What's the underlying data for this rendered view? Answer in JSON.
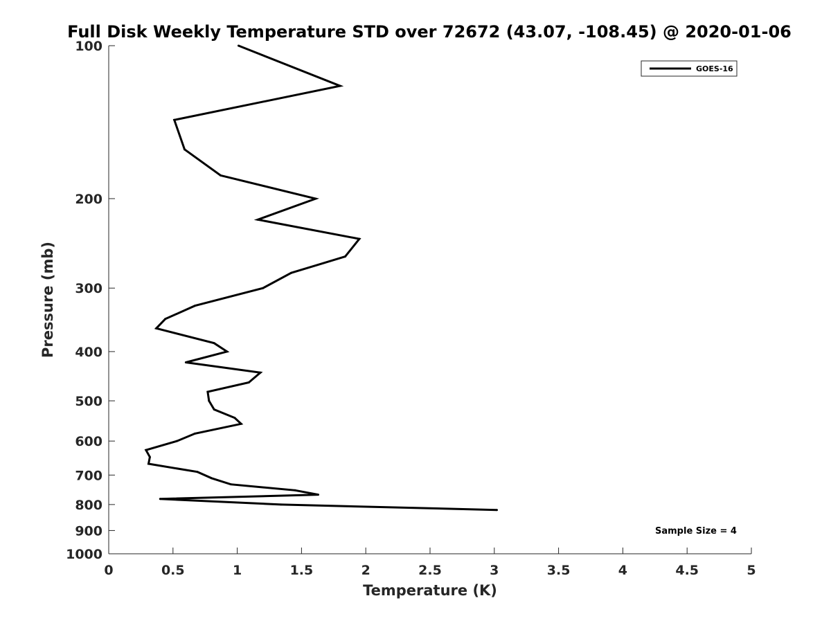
{
  "chart_data": {
    "type": "line",
    "title": "Full Disk Weekly Temperature STD over 72672 (43.07, -108.45) @ 2020-01-06",
    "xlabel": "Temperature (K)",
    "ylabel": "Pressure (mb)",
    "xlim": [
      0,
      5
    ],
    "ylim": [
      100,
      1000
    ],
    "yscale": "log",
    "y_reversed": true,
    "grid": false,
    "x_ticks": [
      0,
      0.5,
      1,
      1.5,
      2,
      2.5,
      3,
      3.5,
      4,
      4.5,
      5
    ],
    "x_tick_labels": [
      "0",
      "0.5",
      "1",
      "1.5",
      "2",
      "2.5",
      "3",
      "3.5",
      "4",
      "4.5",
      "5"
    ],
    "y_ticks": [
      100,
      200,
      300,
      400,
      500,
      600,
      700,
      800,
      900,
      1000
    ],
    "y_tick_labels": [
      "100",
      "200",
      "300",
      "400",
      "500",
      "600",
      "700",
      "800",
      "900",
      "1000"
    ],
    "legend": {
      "position": "top-right",
      "entries": [
        "GOES-16"
      ]
    },
    "annotations": [
      "Sample Size = 4"
    ],
    "series": [
      {
        "name": "GOES-16",
        "color": "#000000",
        "points": [
          {
            "x": 1.01,
            "p": 100
          },
          {
            "x": 1.8,
            "p": 120
          },
          {
            "x": 0.51,
            "p": 140
          },
          {
            "x": 0.59,
            "p": 160
          },
          {
            "x": 0.87,
            "p": 180
          },
          {
            "x": 1.61,
            "p": 200
          },
          {
            "x": 1.16,
            "p": 220
          },
          {
            "x": 1.95,
            "p": 240
          },
          {
            "x": 1.84,
            "p": 260
          },
          {
            "x": 1.42,
            "p": 280
          },
          {
            "x": 1.2,
            "p": 300
          },
          {
            "x": 0.67,
            "p": 325
          },
          {
            "x": 0.44,
            "p": 345
          },
          {
            "x": 0.37,
            "p": 360
          },
          {
            "x": 0.82,
            "p": 385
          },
          {
            "x": 0.92,
            "p": 400
          },
          {
            "x": 0.6,
            "p": 420
          },
          {
            "x": 1.18,
            "p": 440
          },
          {
            "x": 1.09,
            "p": 460
          },
          {
            "x": 0.77,
            "p": 480
          },
          {
            "x": 0.78,
            "p": 500
          },
          {
            "x": 0.82,
            "p": 520
          },
          {
            "x": 0.98,
            "p": 540
          },
          {
            "x": 1.03,
            "p": 555
          },
          {
            "x": 0.67,
            "p": 580
          },
          {
            "x": 0.53,
            "p": 600
          },
          {
            "x": 0.29,
            "p": 625
          },
          {
            "x": 0.32,
            "p": 645
          },
          {
            "x": 0.31,
            "p": 665
          },
          {
            "x": 0.69,
            "p": 690
          },
          {
            "x": 0.8,
            "p": 710
          },
          {
            "x": 0.95,
            "p": 730
          },
          {
            "x": 1.45,
            "p": 750
          },
          {
            "x": 1.63,
            "p": 765
          },
          {
            "x": 0.4,
            "p": 780
          },
          {
            "x": 1.34,
            "p": 800
          },
          {
            "x": 3.02,
            "p": 820
          }
        ]
      }
    ]
  }
}
